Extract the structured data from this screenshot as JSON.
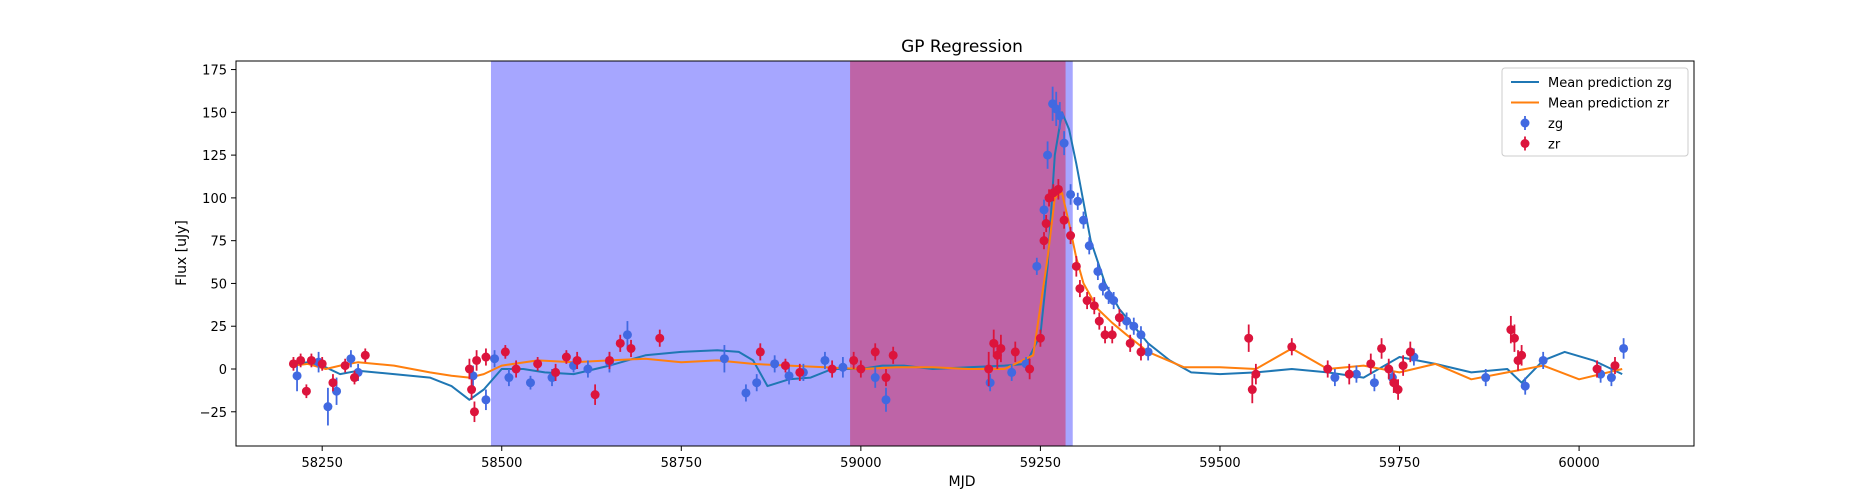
{
  "chart_data": {
    "type": "scatter",
    "title": "GP Regression",
    "xlabel": "MJD",
    "ylabel": "Flux [uJy]",
    "xlim": [
      58130,
      60160
    ],
    "ylim": [
      -45,
      180
    ],
    "xticks": [
      58250,
      58500,
      58750,
      59000,
      59250,
      59500,
      59750,
      60000
    ],
    "yticks": [
      -25,
      0,
      25,
      50,
      75,
      100,
      125,
      150,
      175
    ],
    "grid": false,
    "legend_position": "top-right",
    "legend": [
      {
        "label": "Mean prediction zg",
        "type": "line",
        "color": "#1f77b4"
      },
      {
        "label": "Mean prediction zr",
        "type": "line",
        "color": "#ff7f0e"
      },
      {
        "label": "zg",
        "type": "errorbar",
        "color": "#4169e1"
      },
      {
        "label": "zr",
        "type": "errorbar",
        "color": "#dc143c"
      }
    ],
    "shaded_regions": [
      {
        "x0": 58485,
        "x1": 59295,
        "color": "#0000ff",
        "alpha": 0.35
      },
      {
        "x0": 58985,
        "x1": 59285,
        "color": "#dc143c",
        "alpha": 0.45
      }
    ],
    "series": [
      {
        "name": "Mean prediction zg",
        "type": "line",
        "color": "#1f77b4",
        "x": [
          58210,
          58230,
          58255,
          58275,
          58300,
          58350,
          58400,
          58430,
          58455,
          58475,
          58500,
          58530,
          58560,
          58600,
          58650,
          58700,
          58750,
          58800,
          58830,
          58850,
          58870,
          58900,
          58930,
          58960,
          58990,
          59000,
          59030,
          59060,
          59100,
          59150,
          59200,
          59230,
          59250,
          59260,
          59270,
          59280,
          59290,
          59300,
          59320,
          59340,
          59360,
          59380,
          59400,
          59430,
          59460,
          59500,
          59550,
          59600,
          59650,
          59700,
          59750,
          59800,
          59850,
          59900,
          59920,
          59950,
          59980,
          60020,
          60060
        ],
        "y": [
          3,
          4,
          1,
          -3,
          -1,
          -3,
          -5,
          -10,
          -18,
          -12,
          0,
          0,
          -2,
          -3,
          2,
          8,
          10,
          11,
          10,
          5,
          -10,
          -6,
          -5,
          0,
          0,
          0,
          2,
          2,
          0,
          1,
          2,
          3,
          20,
          60,
          125,
          150,
          140,
          120,
          75,
          50,
          35,
          25,
          15,
          5,
          -2,
          -3,
          -2,
          0,
          -2,
          -5,
          7,
          3,
          -2,
          0,
          -8,
          5,
          10,
          5,
          -3
        ]
      },
      {
        "name": "Mean prediction zr",
        "type": "line",
        "color": "#ff7f0e",
        "x": [
          58210,
          58230,
          58255,
          58275,
          58300,
          58350,
          58400,
          58430,
          58455,
          58475,
          58500,
          58550,
          58600,
          58650,
          58700,
          58750,
          58800,
          58850,
          58900,
          58950,
          59000,
          59050,
          59100,
          59150,
          59200,
          59240,
          59260,
          59270,
          59280,
          59290,
          59300,
          59310,
          59330,
          59350,
          59370,
          59400,
          59450,
          59500,
          59550,
          59600,
          59650,
          59700,
          59750,
          59800,
          59850,
          59900,
          59950,
          60000,
          60060
        ],
        "y": [
          2,
          3,
          0,
          2,
          4,
          2,
          -2,
          -4,
          -5,
          -3,
          2,
          5,
          4,
          5,
          6,
          4,
          5,
          3,
          2,
          1,
          0,
          1,
          1,
          0,
          0,
          8,
          65,
          100,
          103,
          85,
          65,
          50,
          35,
          27,
          20,
          10,
          1,
          1,
          0,
          12,
          0,
          2,
          -2,
          3,
          -6,
          -2,
          2,
          -6,
          0
        ]
      },
      {
        "name": "zg",
        "type": "errorbar",
        "color": "#4169e1",
        "x": [
          58215,
          58245,
          58258,
          58270,
          58290,
          58300,
          58460,
          58478,
          58490,
          58510,
          58540,
          58570,
          58600,
          58620,
          58650,
          58675,
          58810,
          58840,
          58855,
          58880,
          58900,
          58920,
          58950,
          58975,
          59020,
          59035,
          59180,
          59210,
          59230,
          59245,
          59255,
          59260,
          59267,
          59272,
          59277,
          59283,
          59292,
          59302,
          59310,
          59318,
          59330,
          59337,
          59345,
          59352,
          59360,
          59370,
          59380,
          59390,
          59400,
          59660,
          59690,
          59715,
          59740,
          59770,
          59870,
          59925,
          59950,
          60030,
          60045,
          60062
        ],
        "y": [
          -4,
          4,
          -22,
          -13,
          6,
          -2,
          -4,
          -18,
          6,
          -5,
          -8,
          -5,
          2,
          0,
          4,
          20,
          6,
          -14,
          -8,
          3,
          -4,
          -2,
          5,
          1,
          -5,
          -18,
          -8,
          -2,
          3,
          60,
          93,
          125,
          155,
          152,
          148,
          132,
          102,
          98,
          87,
          72,
          57,
          48,
          43,
          40,
          30,
          28,
          25,
          20,
          10,
          -5,
          -3,
          -8,
          -5,
          7,
          -5,
          -10,
          5,
          -3,
          -5,
          12
        ],
        "err": [
          9,
          6,
          11,
          8,
          5,
          5,
          6,
          6,
          5,
          5,
          4,
          5,
          4,
          5,
          6,
          8,
          8,
          5,
          5,
          5,
          5,
          5,
          5,
          6,
          6,
          7,
          5,
          5,
          4,
          5,
          6,
          8,
          10,
          10,
          8,
          7,
          6,
          5,
          5,
          5,
          5,
          5,
          5,
          5,
          5,
          5,
          5,
          5,
          5,
          5,
          5,
          5,
          5,
          5,
          5,
          5,
          5,
          5,
          5,
          6
        ]
      },
      {
        "name": "zr",
        "type": "errorbar",
        "color": "#dc143c",
        "x": [
          58210,
          58220,
          58228,
          58235,
          58250,
          58265,
          58282,
          58295,
          58310,
          58455,
          58458,
          58462,
          58465,
          58478,
          58505,
          58520,
          58550,
          58575,
          58590,
          58605,
          58630,
          58650,
          58665,
          58680,
          58720,
          58860,
          58895,
          58915,
          58960,
          58990,
          59000,
          59020,
          59035,
          59045,
          59178,
          59185,
          59190,
          59195,
          59215,
          59235,
          59250,
          59255,
          59258,
          59262,
          59268,
          59275,
          59283,
          59292,
          59300,
          59305,
          59315,
          59325,
          59332,
          59340,
          59350,
          59360,
          59375,
          59390,
          59540,
          59545,
          59550,
          59600,
          59650,
          59680,
          59710,
          59725,
          59735,
          59742,
          59748,
          59755,
          59765,
          59905,
          59910,
          59915,
          59920,
          60025,
          60050
        ],
        "y": [
          3,
          5,
          -13,
          5,
          3,
          -8,
          2,
          -5,
          8,
          0,
          -12,
          -25,
          5,
          7,
          10,
          0,
          3,
          -2,
          7,
          5,
          -15,
          5,
          15,
          12,
          18,
          10,
          2,
          -2,
          0,
          5,
          0,
          10,
          -5,
          8,
          0,
          15,
          8,
          12,
          10,
          0,
          18,
          75,
          85,
          100,
          103,
          105,
          87,
          78,
          60,
          47,
          40,
          37,
          28,
          20,
          20,
          30,
          15,
          10,
          18,
          -12,
          -3,
          13,
          0,
          -3,
          3,
          12,
          0,
          -8,
          -12,
          2,
          10,
          23,
          18,
          5,
          8,
          0,
          2
        ],
        "err": [
          4,
          4,
          4,
          4,
          4,
          5,
          4,
          4,
          4,
          6,
          6,
          6,
          6,
          5,
          4,
          5,
          4,
          5,
          4,
          5,
          6,
          5,
          5,
          5,
          5,
          5,
          4,
          5,
          5,
          5,
          5,
          5,
          5,
          5,
          10,
          8,
          8,
          8,
          6,
          6,
          5,
          5,
          5,
          5,
          5,
          6,
          5,
          5,
          6,
          5,
          5,
          5,
          5,
          5,
          5,
          5,
          5,
          5,
          8,
          8,
          6,
          5,
          5,
          6,
          6,
          6,
          6,
          6,
          6,
          6,
          6,
          8,
          8,
          6,
          6,
          5,
          5
        ]
      }
    ]
  }
}
